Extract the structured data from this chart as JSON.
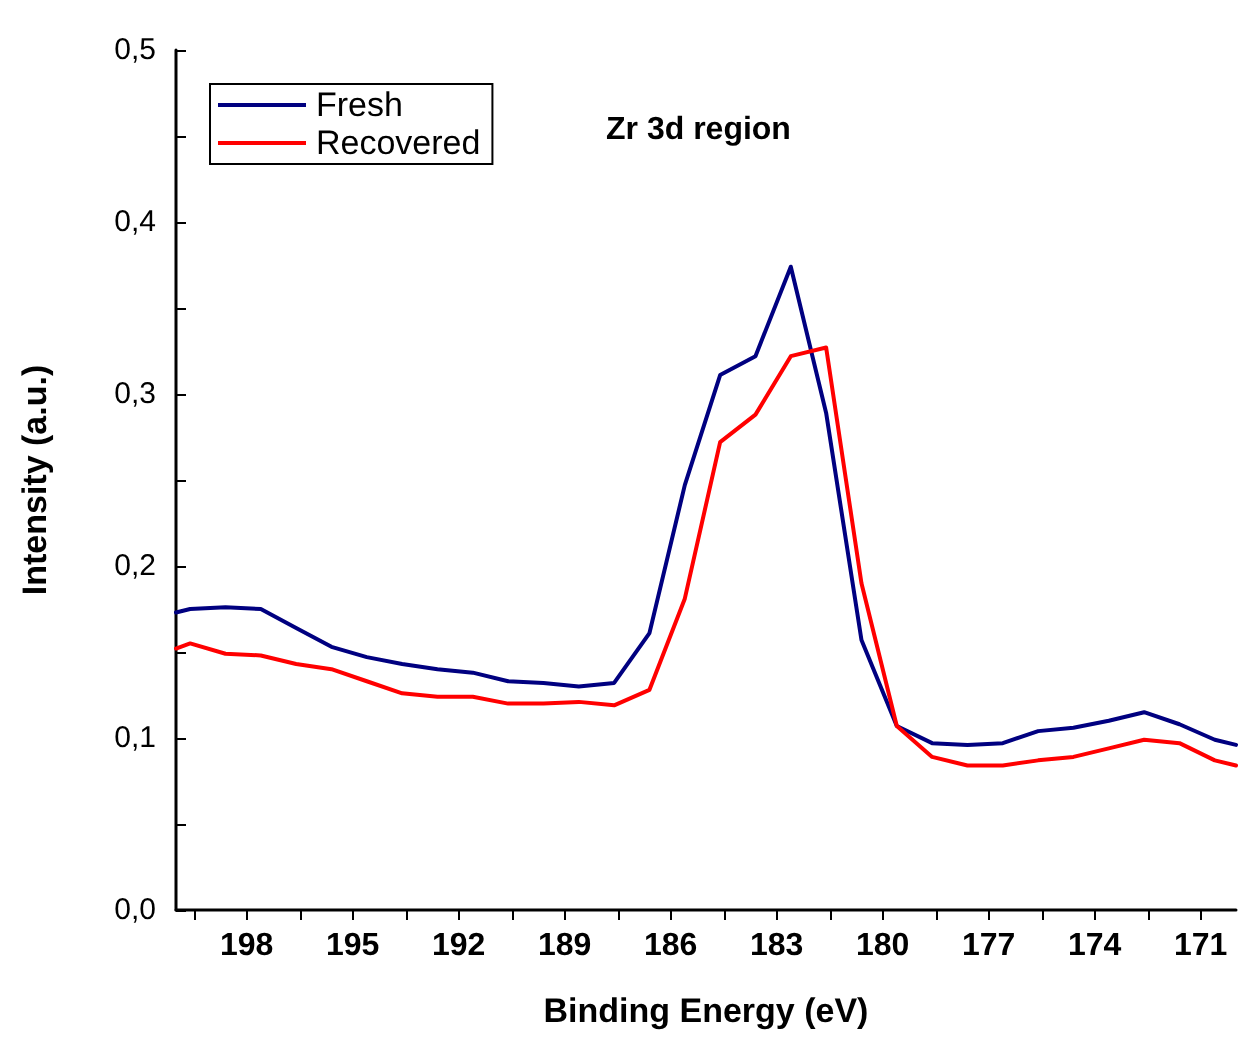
{
  "chart_data": {
    "type": "line",
    "xlabel": "Binding Energy (eV)",
    "ylabel": "Intensity (a.u.)",
    "annotations": [
      "Zr 3d region"
    ],
    "x": [
      200,
      199.6,
      198.6,
      197.6,
      196.6,
      195.6,
      194.6,
      193.6,
      192.6,
      191.6,
      190.6,
      189.6,
      188.6,
      187.6,
      186.6,
      185.6,
      184.6,
      183.6,
      182.6,
      181.6,
      180.6,
      179.6,
      178.6,
      177.6,
      176.6,
      175.6,
      174.6,
      173.6,
      172.6,
      171.6,
      170.6,
      170
    ],
    "series": [
      {
        "name": "Fresh",
        "color": "#000080",
        "values": [
          0.173,
          0.175,
          0.176,
          0.175,
          0.164,
          0.153,
          0.147,
          0.143,
          0.14,
          0.138,
          0.133,
          0.132,
          0.13,
          0.132,
          0.161,
          0.247,
          0.311,
          0.322,
          0.374,
          0.289,
          0.157,
          0.107,
          0.097,
          0.096,
          0.097,
          0.104,
          0.106,
          0.11,
          0.115,
          0.108,
          0.099,
          0.096
        ]
      },
      {
        "name": "Recovered",
        "color": "#ff0000",
        "values": [
          0.152,
          0.155,
          0.149,
          0.148,
          0.143,
          0.14,
          0.133,
          0.126,
          0.124,
          0.124,
          0.12,
          0.12,
          0.121,
          0.119,
          0.128,
          0.181,
          0.272,
          0.288,
          0.322,
          0.327,
          0.19,
          0.107,
          0.089,
          0.084,
          0.084,
          0.087,
          0.089,
          0.094,
          0.099,
          0.097,
          0.087,
          0.084
        ]
      }
    ],
    "xlim": [
      200,
      170
    ],
    "xticks": [
      {
        "value": 199.5,
        "label": null
      },
      198,
      {
        "value": 196.5,
        "label": null
      },
      195,
      {
        "value": 193.5,
        "label": null
      },
      192,
      {
        "value": 190.5,
        "label": null
      },
      189,
      {
        "value": 187.5,
        "label": null
      },
      186,
      {
        "value": 184.5,
        "label": null
      },
      183,
      {
        "value": 181.5,
        "label": null
      },
      180,
      {
        "value": 178.5,
        "label": null
      },
      177,
      {
        "value": 175.5,
        "label": null
      },
      174,
      {
        "value": 172.5,
        "label": null
      },
      171
    ],
    "ylim": [
      0,
      0.5
    ],
    "yticks": [
      {
        "value": 0,
        "label": "0,0"
      },
      {
        "value": 0.05,
        "label": null
      },
      {
        "value": 0.1,
        "label": "0,1"
      },
      {
        "value": 0.15,
        "label": null
      },
      {
        "value": 0.2,
        "label": "0,2"
      },
      {
        "value": 0.25,
        "label": null
      },
      {
        "value": 0.3,
        "label": "0,3"
      },
      {
        "value": 0.35,
        "label": null
      },
      {
        "value": 0.4,
        "label": "0,4"
      },
      {
        "value": 0.45,
        "label": null
      },
      {
        "value": 0.5,
        "label": "0,5"
      }
    ],
    "legend": "top left",
    "marker": "none",
    "line_style": "solid",
    "grid": false
  }
}
